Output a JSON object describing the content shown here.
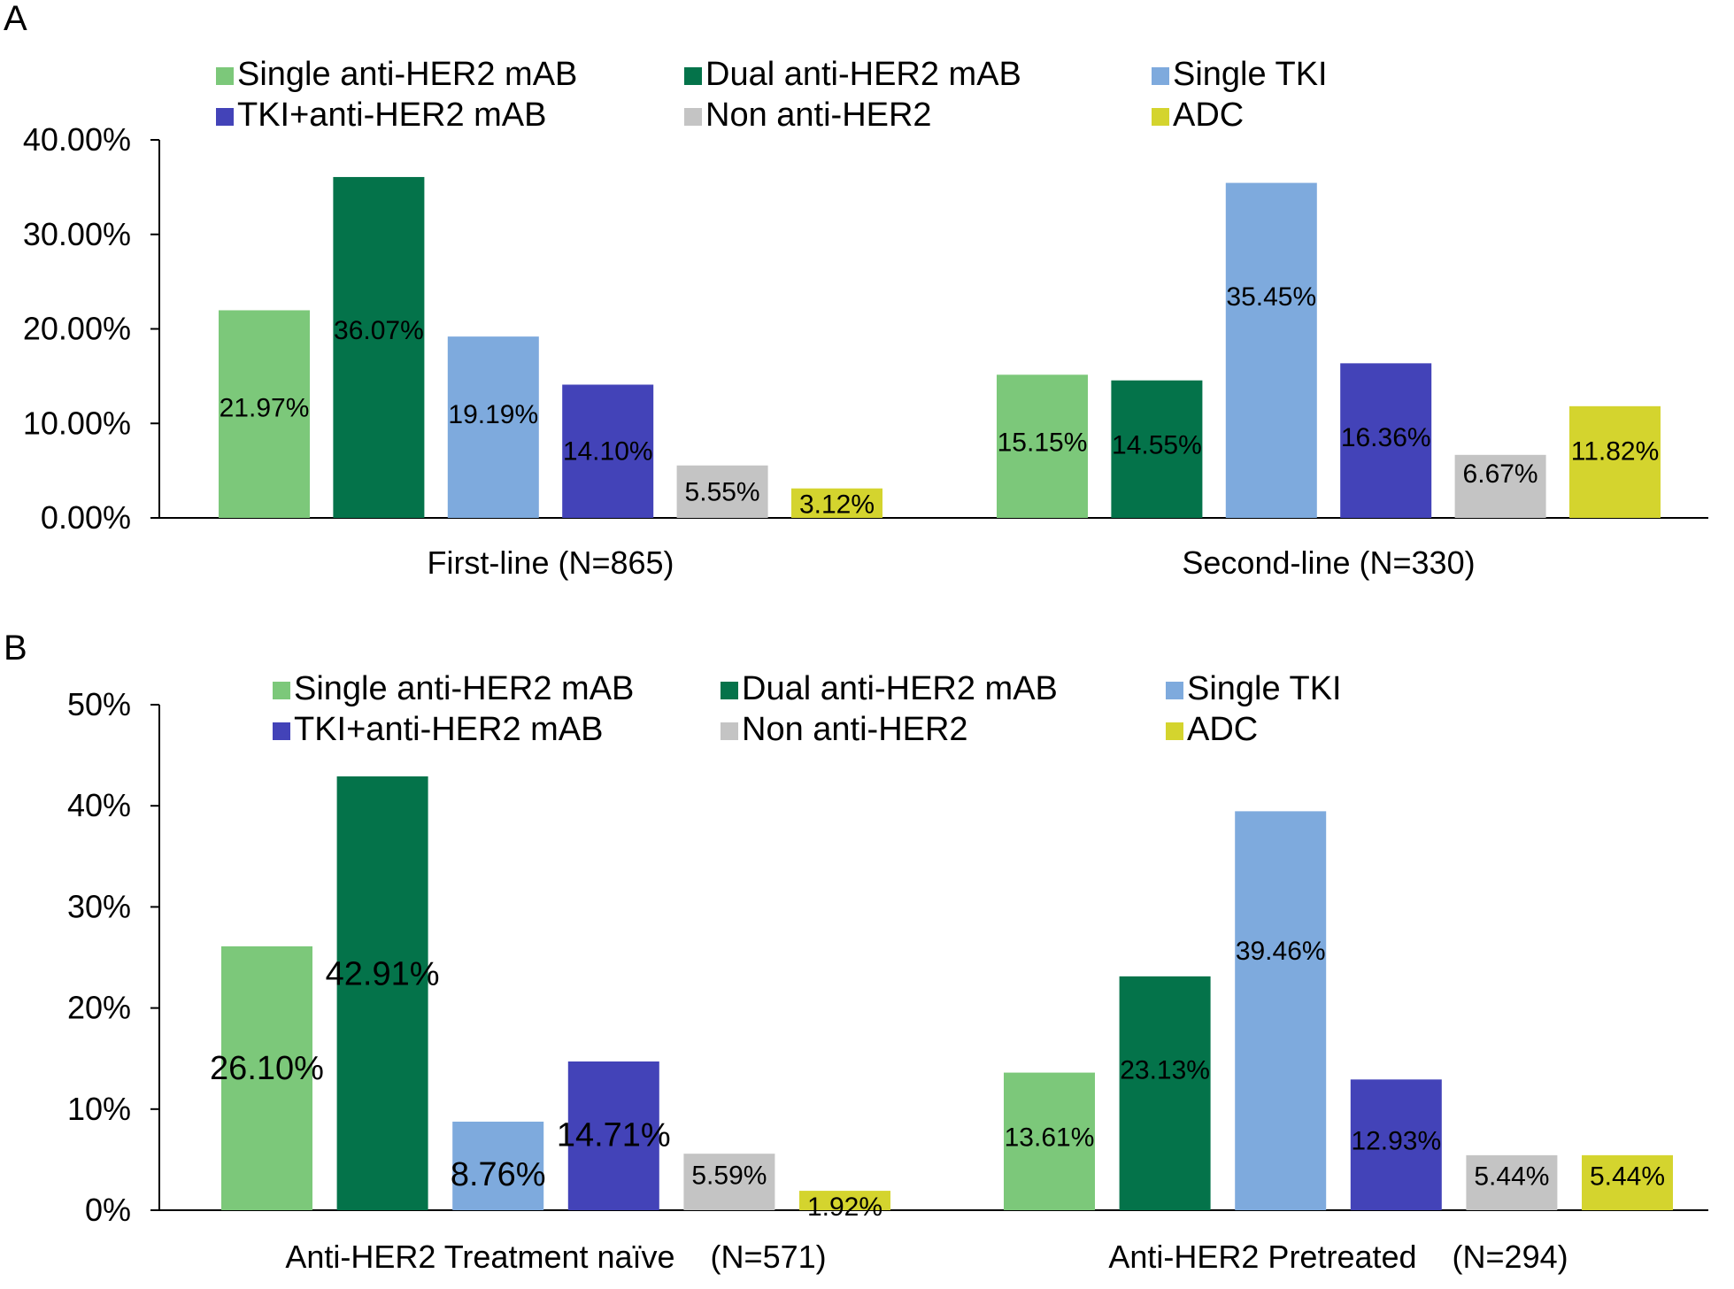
{
  "chart_data": [
    {
      "panel": "A",
      "type": "bar",
      "categories": [
        "First-line (N=865)",
        "Second-line (N=330)"
      ],
      "ylim": [
        0,
        40
      ],
      "yticks": [
        "0.00%",
        "10.00%",
        "20.00%",
        "30.00%",
        "40.00%"
      ],
      "series": [
        {
          "name": "Single anti-HER2 mAB",
          "color": "#7cc87a",
          "values": [
            21.97,
            15.15
          ],
          "labels": [
            "21.97%",
            "15.15%"
          ]
        },
        {
          "name": "Dual anti-HER2 mAB",
          "color": "#04734a",
          "values": [
            36.07,
            14.55
          ],
          "labels": [
            "36.07%",
            "14.55%"
          ]
        },
        {
          "name": "Single TKI",
          "color": "#7eaadd",
          "values": [
            19.19,
            35.45
          ],
          "labels": [
            "19.19%",
            "35.45%"
          ]
        },
        {
          "name": "TKI+anti-HER2 mAB",
          "color": "#4343b8",
          "values": [
            14.1,
            16.36
          ],
          "labels": [
            "14.10%",
            "16.36%"
          ]
        },
        {
          "name": "Non anti-HER2",
          "color": "#c4c4c4",
          "values": [
            5.55,
            6.67
          ],
          "labels": [
            "5.55%",
            "6.67%"
          ]
        },
        {
          "name": "ADC",
          "color": "#d4d42e",
          "values": [
            3.12,
            11.82
          ],
          "labels": [
            "3.12%",
            "11.82%"
          ]
        }
      ]
    },
    {
      "panel": "B",
      "type": "bar",
      "categories": [
        "Anti-HER2 Treatment naïve    (N=571)",
        "Anti-HER2 Pretreated    (N=294)"
      ],
      "ylim": [
        0,
        50
      ],
      "yticks": [
        "0%",
        "10%",
        "20%",
        "30%",
        "40%",
        "50%"
      ],
      "series": [
        {
          "name": "Single anti-HER2 mAB",
          "color": "#7cc87a",
          "values": [
            26.1,
            13.61
          ],
          "labels": [
            "26.10%",
            "13.61%"
          ]
        },
        {
          "name": "Dual anti-HER2 mAB",
          "color": "#04734a",
          "values": [
            42.91,
            23.13
          ],
          "labels": [
            "42.91%",
            "23.13%"
          ]
        },
        {
          "name": "Single TKI",
          "color": "#7eaadd",
          "values": [
            8.76,
            39.46
          ],
          "labels": [
            "8.76%",
            "39.46%"
          ]
        },
        {
          "name": "TKI+anti-HER2 mAB",
          "color": "#4343b8",
          "values": [
            14.71,
            12.93
          ],
          "labels": [
            "14.71%",
            "12.93%"
          ]
        },
        {
          "name": "Non anti-HER2",
          "color": "#c4c4c4",
          "values": [
            5.59,
            5.44
          ],
          "labels": [
            "5.59%",
            "5.44%"
          ]
        },
        {
          "name": "ADC",
          "color": "#d4d42e",
          "values": [
            1.92,
            5.44
          ],
          "labels": [
            "1.92%",
            "5.44%"
          ]
        }
      ]
    }
  ]
}
